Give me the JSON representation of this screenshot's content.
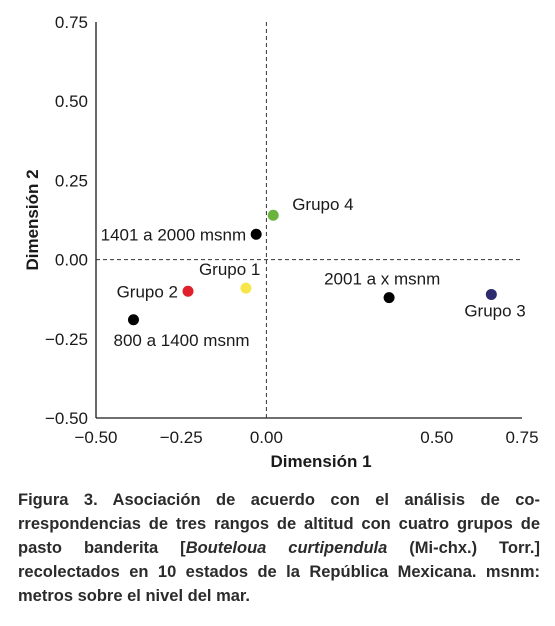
{
  "chart_data": {
    "type": "scatter",
    "xlabel": "Dimensión 1",
    "ylabel": "Dimensión 2",
    "xlim": [
      -0.5,
      0.75
    ],
    "ylim": [
      -0.5,
      0.75
    ],
    "x_ticks": [
      "−0.50",
      "−0.25",
      "0.00",
      "0.50",
      "0.75"
    ],
    "x_tick_values": [
      -0.5,
      -0.25,
      0.0,
      0.5,
      0.75
    ],
    "y_ticks": [
      "0.75",
      "0.50",
      "0.25",
      "0.00",
      "−0.25",
      "−0.50"
    ],
    "y_tick_values": [
      0.75,
      0.5,
      0.25,
      0.0,
      -0.25,
      -0.5
    ],
    "reference_lines": {
      "x": 0,
      "y": 0,
      "style": "dashed"
    },
    "points": [
      {
        "label": "1401 a 2000 msnm",
        "x": -0.03,
        "y": 0.08,
        "color": "#000000",
        "label_pos": "left"
      },
      {
        "label": "Grupo 4",
        "x": 0.02,
        "y": 0.14,
        "color": "#6ab43e",
        "label_pos": "right"
      },
      {
        "label": "Grupo 1",
        "x": -0.06,
        "y": -0.09,
        "color": "#f7e64a",
        "label_pos": "top-left"
      },
      {
        "label": "Grupo 2",
        "x": -0.23,
        "y": -0.1,
        "color": "#e0202a",
        "label_pos": "left"
      },
      {
        "label": "800 a 1400 msnm",
        "x": -0.39,
        "y": -0.19,
        "color": "#000000",
        "label_pos": "bottom-right"
      },
      {
        "label": "2001 a x msnm",
        "x": 0.36,
        "y": -0.12,
        "color": "#000000",
        "label_pos": "top"
      },
      {
        "label": "Grupo 3",
        "x": 0.66,
        "y": -0.11,
        "color": "#2e2a6e",
        "label_pos": "bottom"
      }
    ]
  },
  "caption": {
    "prefix": "Figura 3. Asociación de acuerdo con el análisis de co-rrespondencias de tres rangos de altitud con cuatro grupos de pasto banderita [",
    "species": "Bouteloua curtipendula",
    "suffix": " (Mi-chx.) Torr.] recolectados en 10 estados de la República Mexicana. msnm: metros sobre el nivel del mar."
  }
}
